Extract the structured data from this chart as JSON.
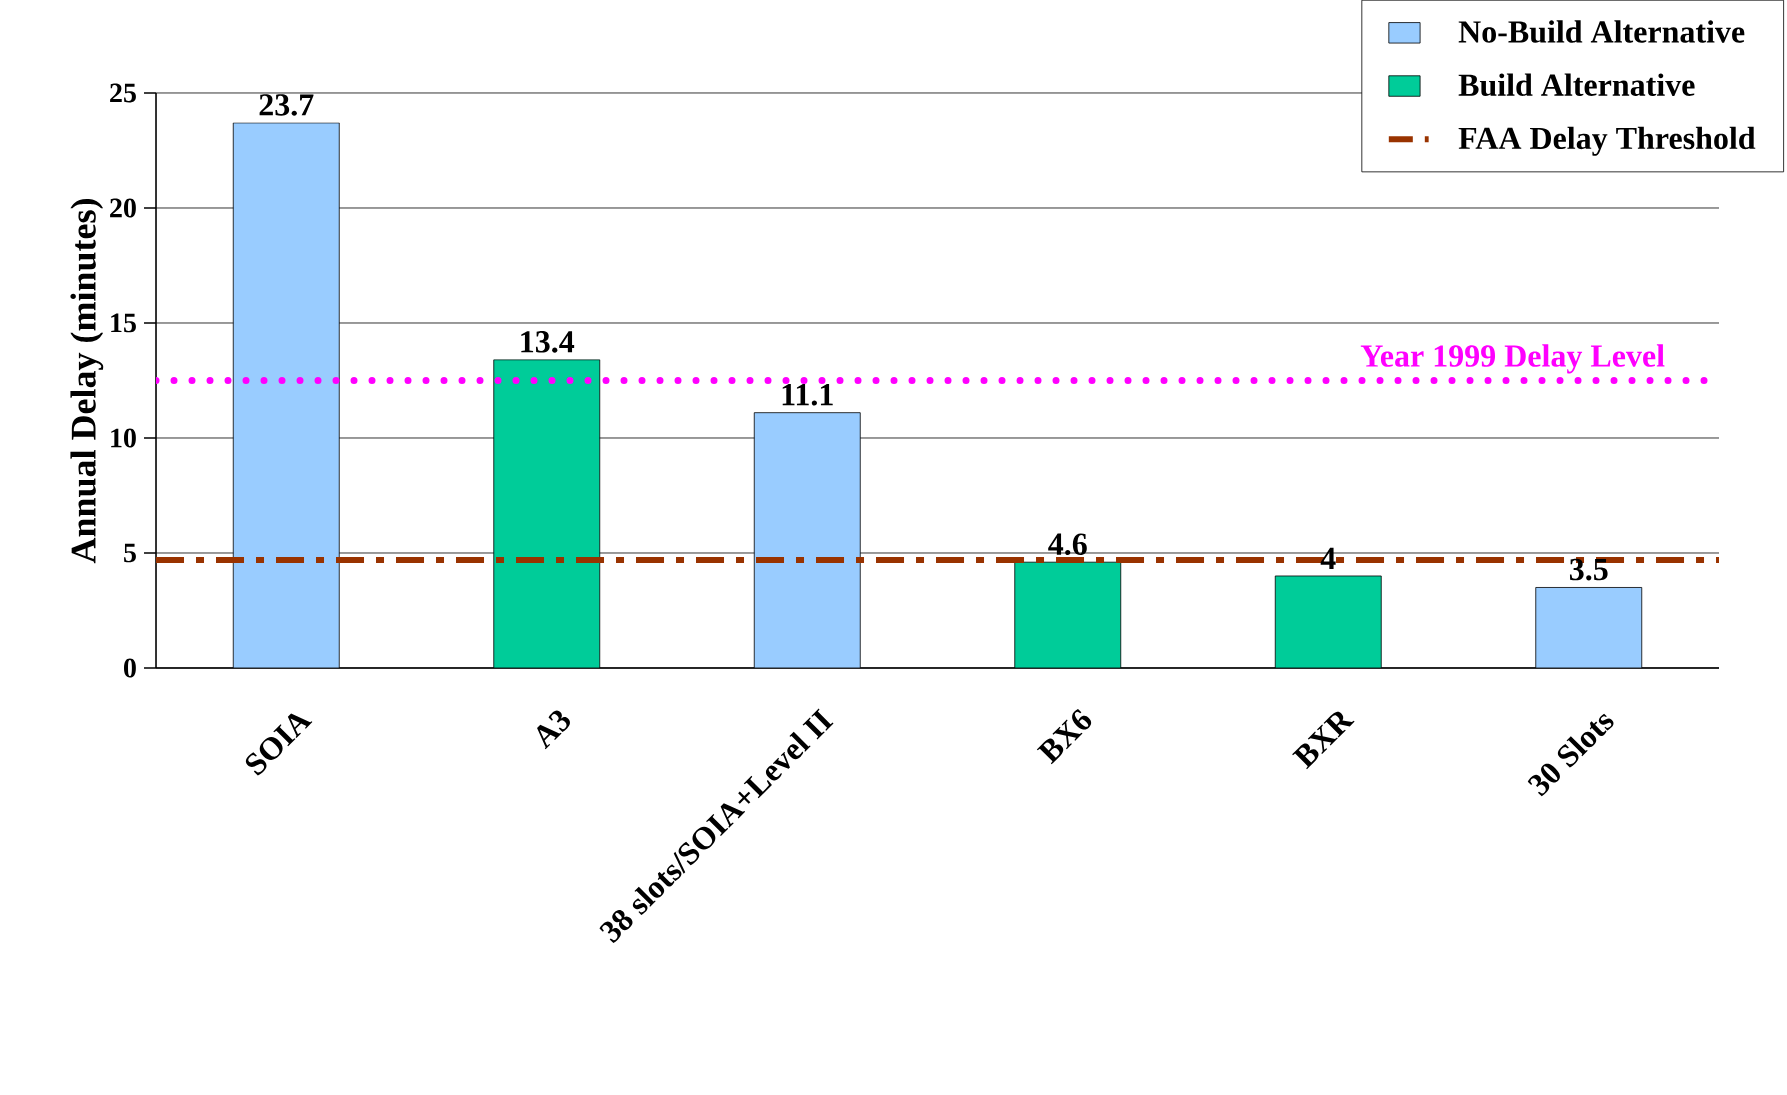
{
  "chart_data": {
    "type": "bar",
    "ylabel": "Annual Delay (minutes)",
    "categories": [
      "SOIA",
      "A3",
      "38 slots/SOIA+Level II",
      "BX6",
      "BXR",
      "30 Slots"
    ],
    "series": [
      {
        "name": "No-Build Alternative",
        "color": "#99ccff",
        "values": [
          23.7,
          null,
          11.1,
          null,
          null,
          3.5
        ]
      },
      {
        "name": "Build Alternative",
        "color": "#00cc99",
        "values": [
          null,
          13.4,
          null,
          4.6,
          4,
          null
        ]
      }
    ],
    "ylim": [
      0,
      25
    ],
    "yticks": [
      0,
      5,
      10,
      15,
      20,
      25
    ],
    "grid": "y",
    "legend": "top right",
    "data_labels": true,
    "ref_lines": [
      {
        "axis": "y",
        "value": 4.7,
        "label": "FAA Delay Threshold",
        "color": "#993300",
        "line_style": "dashed"
      },
      {
        "axis": "y",
        "value": 12.5,
        "label": "Year 1999 Delay Level",
        "color": "#ff00ff",
        "line_style": "dotted"
      }
    ]
  }
}
